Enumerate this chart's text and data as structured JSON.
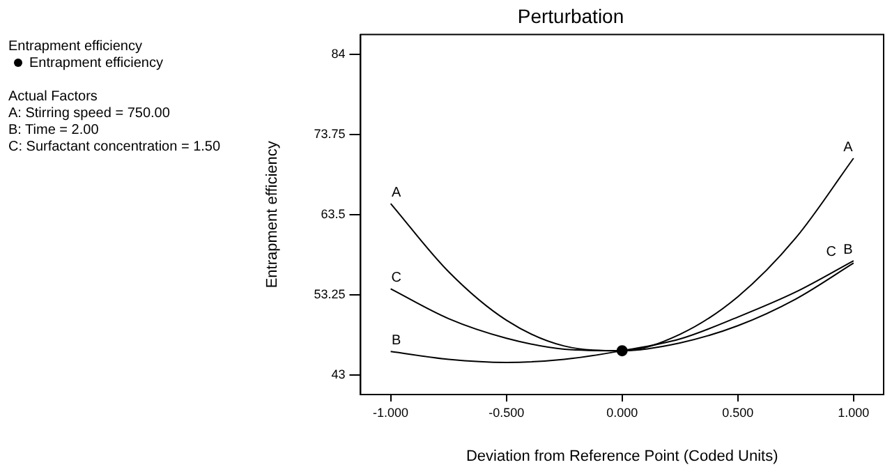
{
  "chart_data": {
    "type": "line",
    "title": "Perturbation",
    "xlabel": "Deviation from Reference Point (Coded Units)",
    "ylabel": "Entrapment efficiency",
    "legend_title": "Entrapment efficiency",
    "legend": "left",
    "annotations": [
      "Actual Factors",
      "A: Stirring speed = 750.00",
      "B: Time = 2.00",
      "C: Surfactant concentration = 1.50"
    ],
    "x": [
      -1,
      -0.75,
      -0.5,
      -0.25,
      0,
      0.25,
      0.5,
      0.75,
      1
    ],
    "series": [
      {
        "name": "A",
        "color": "#000000",
        "values": [
          64.9,
          56.2,
          50.0,
          46.7,
          46.1,
          48.2,
          53.0,
          60.5,
          70.7
        ]
      },
      {
        "name": "B",
        "color": "#000000",
        "values": [
          46.0,
          45.0,
          44.6,
          45.0,
          46.1,
          47.6,
          50.4,
          53.6,
          57.6
        ]
      },
      {
        "name": "C",
        "color": "#000000",
        "values": [
          54.0,
          50.2,
          47.7,
          46.3,
          46.1,
          47.1,
          49.3,
          52.7,
          57.3
        ]
      },
      {
        "name": "Entrapment efficiency",
        "type": "scatter",
        "color": "#000000",
        "x": [
          0
        ],
        "values": [
          46.1
        ],
        "marker": "circle"
      }
    ],
    "xlim": [
      -1.13,
      1.13
    ],
    "ylim": [
      40.5,
      86.5
    ],
    "xticks": [
      {
        "value": -1,
        "label": "-1.000"
      },
      {
        "value": -0.5,
        "label": "-0.500"
      },
      {
        "value": 0,
        "label": "0.000"
      },
      {
        "value": 0.5,
        "label": "0.500"
      },
      {
        "value": 1,
        "label": "1.000"
      }
    ],
    "yticks": [
      43,
      53.25,
      63.5,
      73.75,
      84
    ],
    "grid": false,
    "marker": "none",
    "line_style": "solid"
  }
}
